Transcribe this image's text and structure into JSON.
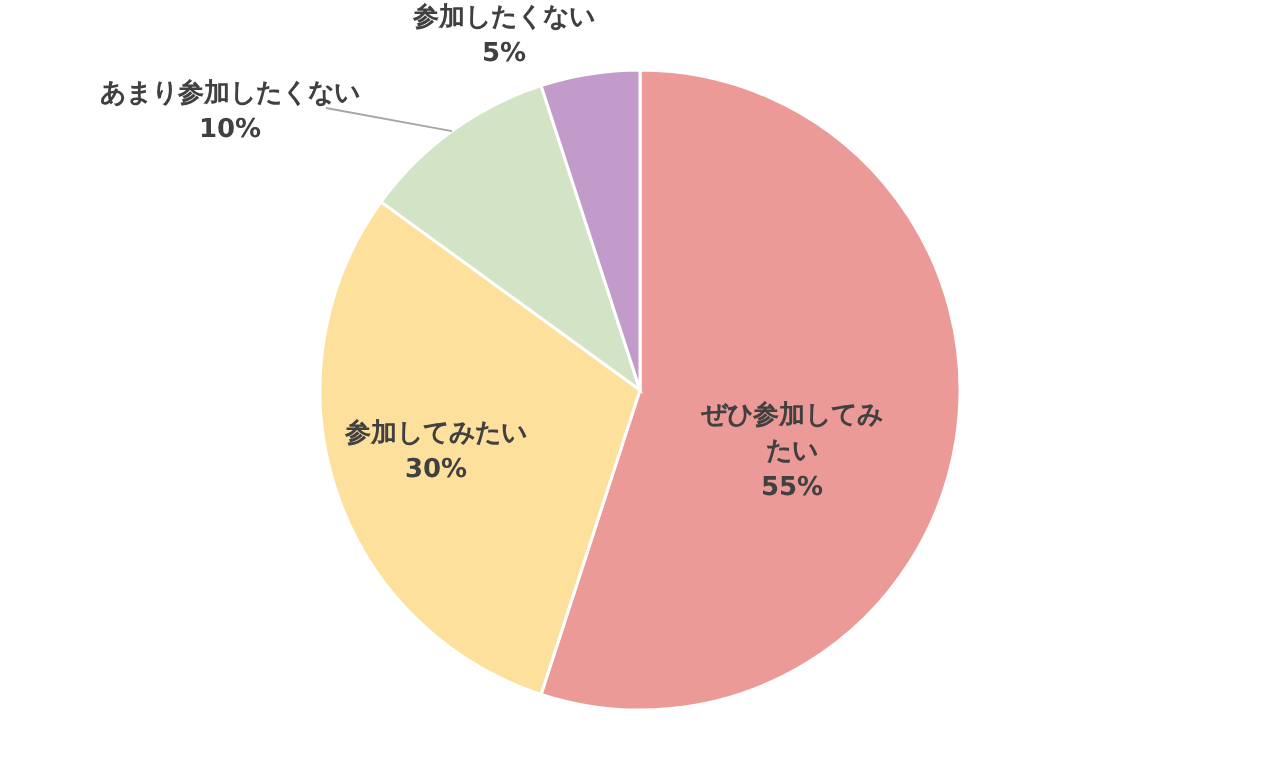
{
  "chart_data": {
    "type": "pie",
    "categories": [
      "ぜひ参加してみたい",
      "参加してみたい",
      "あまり参加したくない",
      "参加したくない"
    ],
    "values": [
      55,
      30,
      10,
      5
    ],
    "value_labels": [
      "55%",
      "30%",
      "10%",
      "5%"
    ],
    "colors": [
      "#ec9a98",
      "#fee09d",
      "#d3e3c6",
      "#c29bcb"
    ],
    "legend": false
  }
}
